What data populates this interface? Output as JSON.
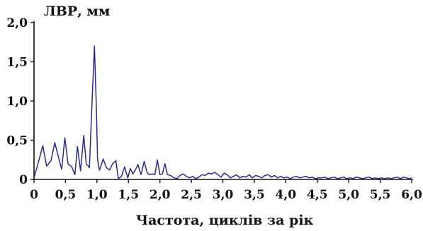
{
  "chart_data": {
    "type": "line",
    "title": "",
    "ylabel": "ЛВР, мм",
    "xlabel": "Частота, циклів за рік",
    "xlim": [
      0,
      6.0
    ],
    "ylim": [
      0,
      2.0
    ],
    "x_ticks": [
      0,
      0.5,
      1.0,
      1.5,
      2.0,
      2.5,
      3.0,
      3.5,
      4.0,
      4.5,
      5.0,
      5.5,
      6.0
    ],
    "x_tick_labels": [
      "0",
      "0,5",
      "1,0",
      "1,5",
      "2,0",
      "2,5",
      "3,0",
      "3,5",
      "4,0",
      "4,5",
      "5,0",
      "5,5",
      "6,0"
    ],
    "y_ticks": [
      0,
      0.5,
      1.0,
      1.5,
      2.0
    ],
    "y_tick_labels": [
      "0",
      "0,5",
      "1,0",
      "1,5",
      "2,0"
    ],
    "grid": false,
    "line_color": "#2a2a8c",
    "series": [
      {
        "x": [
          0.0,
          0.07,
          0.14,
          0.2,
          0.27,
          0.33,
          0.39,
          0.44,
          0.49,
          0.54,
          0.6,
          0.65,
          0.69,
          0.74,
          0.79,
          0.83,
          0.88,
          0.92,
          0.96,
          0.99,
          1.01,
          1.04,
          1.1,
          1.15,
          1.2,
          1.25,
          1.3,
          1.34,
          1.39,
          1.44,
          1.49,
          1.53,
          1.57,
          1.61,
          1.65,
          1.7,
          1.75,
          1.8,
          1.84,
          1.88,
          1.92,
          1.96,
          2.0,
          2.04,
          2.08,
          2.12,
          2.17,
          2.22,
          2.27,
          2.32,
          2.37,
          2.42,
          2.47,
          2.52,
          2.57,
          2.62,
          2.67,
          2.72,
          2.77,
          2.82,
          2.87,
          2.92,
          2.97,
          3.02,
          3.07,
          3.12,
          3.17,
          3.22,
          3.27,
          3.32,
          3.37,
          3.42,
          3.47,
          3.52,
          3.57,
          3.62,
          3.67,
          3.72,
          3.77,
          3.82,
          3.87,
          3.92,
          3.97,
          4.02,
          4.07,
          4.12,
          4.17,
          4.22,
          4.27,
          4.32,
          4.37,
          4.42,
          4.47,
          4.52,
          4.57,
          4.62,
          4.67,
          4.72,
          4.77,
          4.82,
          4.87,
          4.92,
          4.97,
          5.02,
          5.07,
          5.12,
          5.17,
          5.22,
          5.27,
          5.32,
          5.37,
          5.42,
          5.47,
          5.52,
          5.57,
          5.62,
          5.67,
          5.72,
          5.77,
          5.82,
          5.87,
          5.92,
          5.97,
          6.0
        ],
        "values": [
          0.02,
          0.22,
          0.43,
          0.17,
          0.24,
          0.47,
          0.28,
          0.13,
          0.53,
          0.2,
          0.16,
          0.06,
          0.42,
          0.11,
          0.56,
          0.2,
          0.15,
          0.95,
          1.7,
          0.95,
          0.25,
          0.12,
          0.26,
          0.15,
          0.12,
          0.2,
          0.24,
          0.01,
          0.04,
          0.16,
          0.02,
          0.14,
          0.07,
          0.12,
          0.19,
          0.06,
          0.23,
          0.08,
          0.06,
          0.07,
          0.06,
          0.25,
          0.06,
          0.07,
          0.2,
          0.06,
          0.05,
          0.02,
          0.01,
          0.05,
          0.07,
          0.04,
          0.02,
          0.04,
          0.01,
          0.03,
          0.06,
          0.05,
          0.08,
          0.07,
          0.09,
          0.06,
          0.03,
          0.08,
          0.06,
          0.02,
          0.04,
          0.06,
          0.02,
          0.04,
          0.03,
          0.06,
          0.02,
          0.05,
          0.04,
          0.02,
          0.05,
          0.06,
          0.03,
          0.05,
          0.02,
          0.04,
          0.02,
          0.03,
          0.01,
          0.03,
          0.04,
          0.02,
          0.03,
          0.04,
          0.02,
          0.03,
          0.01,
          0.02,
          0.02,
          0.03,
          0.01,
          0.02,
          0.03,
          0.01,
          0.02,
          0.03,
          0.01,
          0.02,
          0.01,
          0.03,
          0.02,
          0.01,
          0.02,
          0.03,
          0.01,
          0.02,
          0.01,
          0.02,
          0.01,
          0.02,
          0.01,
          0.02,
          0.03,
          0.01,
          0.03,
          0.02,
          0.01,
          0.02
        ]
      }
    ]
  }
}
